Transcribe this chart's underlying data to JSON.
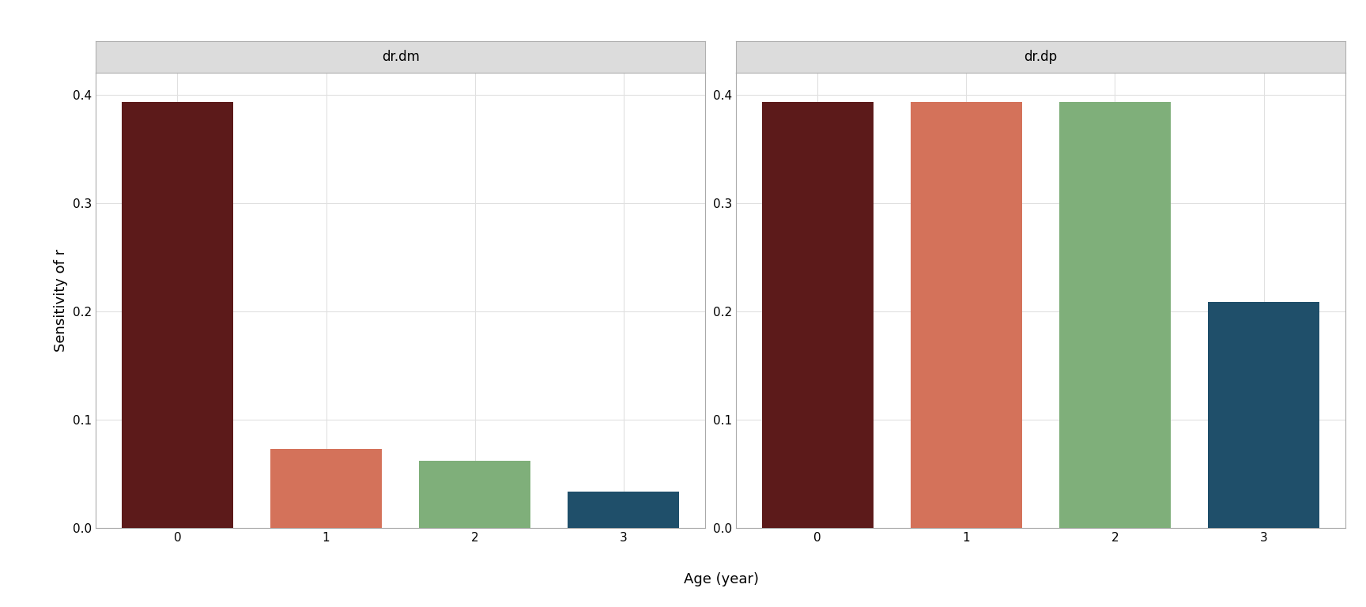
{
  "panel1_title": "dr.dm",
  "panel2_title": "dr.dp",
  "ages": [
    0,
    1,
    2,
    3
  ],
  "dm_values": [
    0.393,
    0.073,
    0.062,
    0.034
  ],
  "dp_values": [
    0.393,
    0.393,
    0.393,
    0.209
  ],
  "bar_colors": [
    "#5C1A1A",
    "#D4725A",
    "#7FAF7A",
    "#1F4F6A"
  ],
  "ylabel": "Sensitivity of r",
  "xlabel": "Age (year)",
  "ylim": [
    0,
    0.42
  ],
  "yticks": [
    0.0,
    0.1,
    0.2,
    0.3,
    0.4
  ],
  "background_color": "#FFFFFF",
  "panel_bg_color": "#FFFFFF",
  "strip_bg_color": "#DCDCDC",
  "strip_border_color": "#B0B0B0",
  "grid_color": "#E0E0E0",
  "title_fontsize": 12,
  "axis_label_fontsize": 13,
  "tick_fontsize": 11,
  "bar_width": 0.75,
  "xlim": [
    -0.55,
    3.55
  ]
}
